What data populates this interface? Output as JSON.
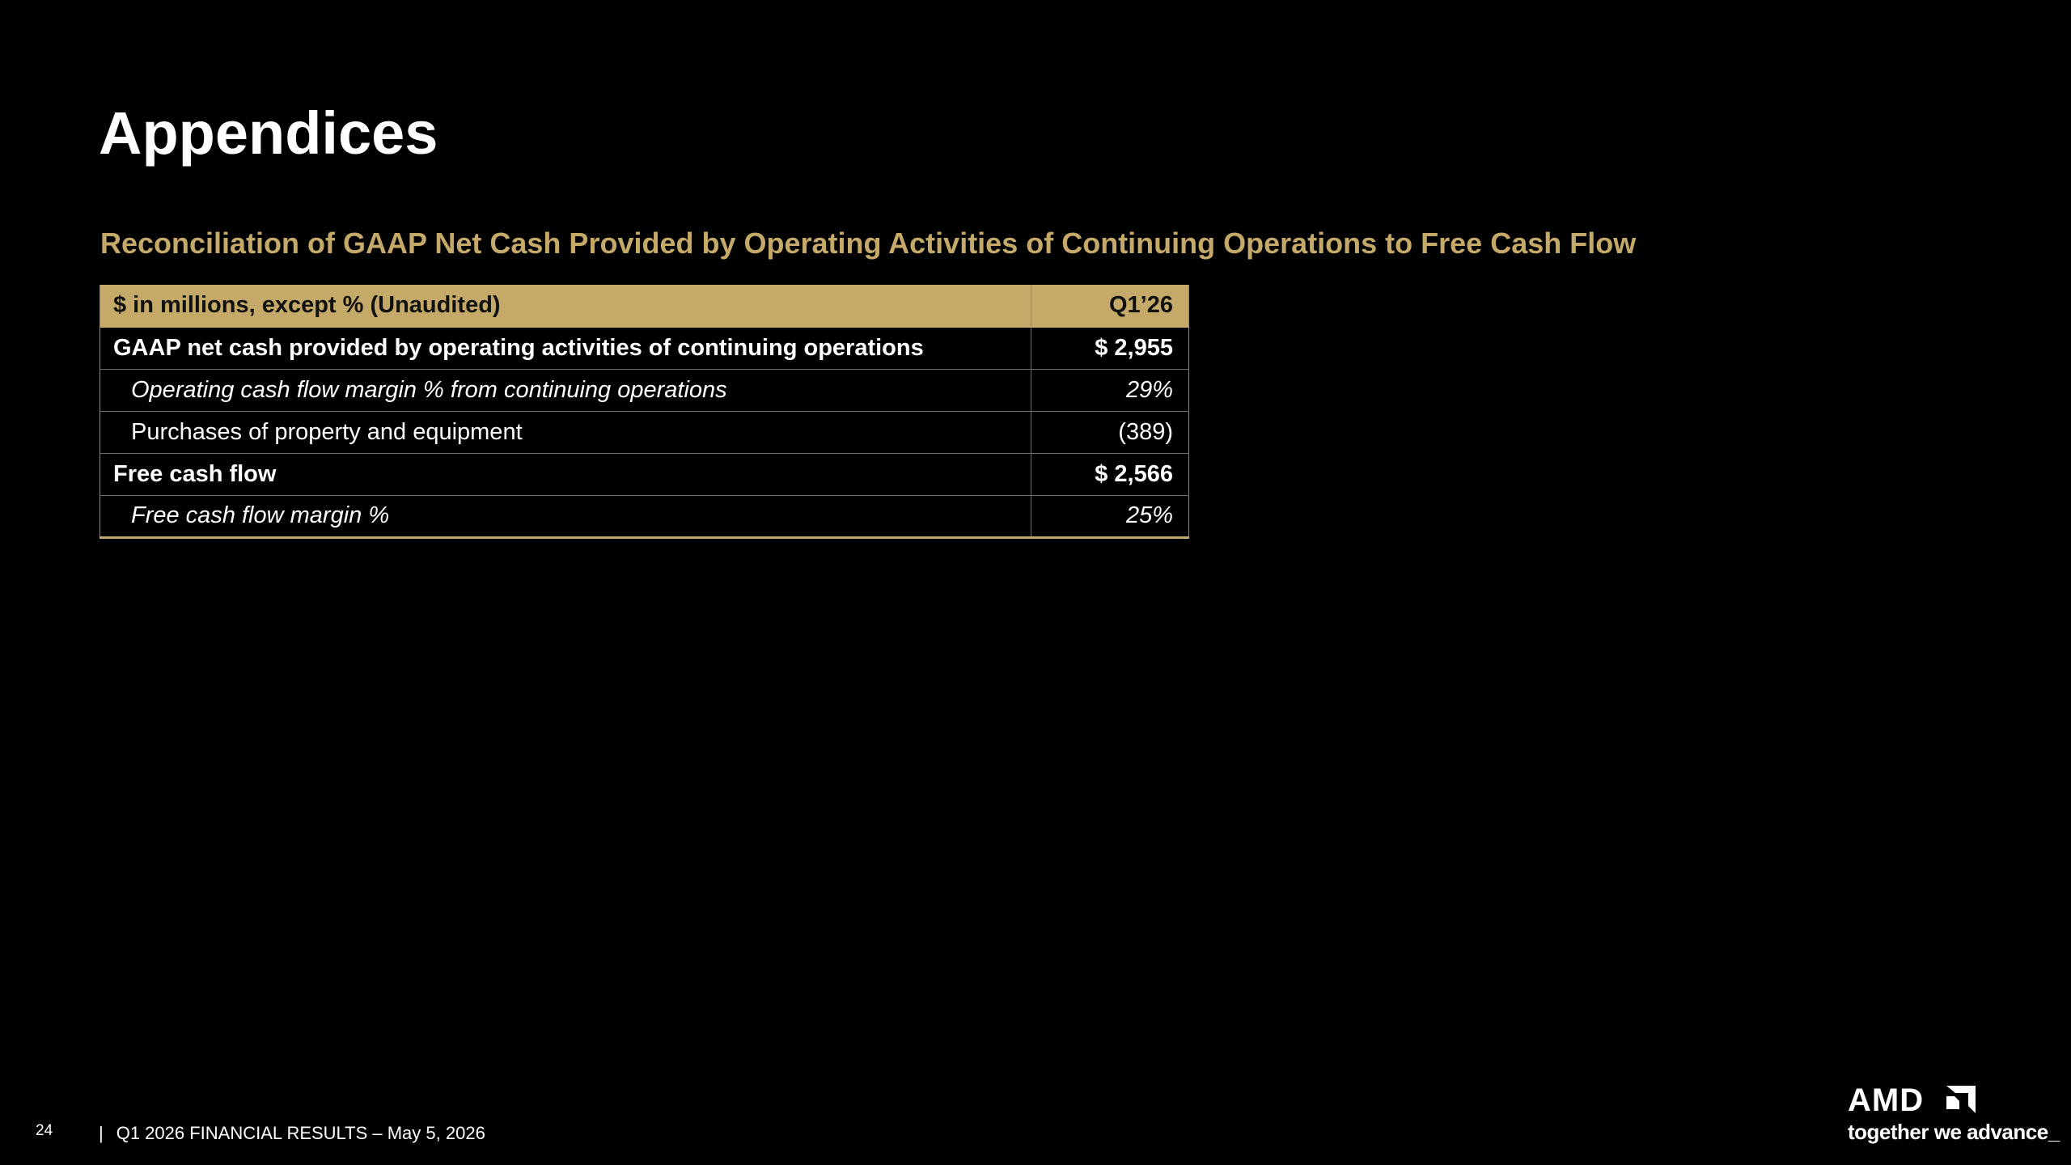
{
  "slide": {
    "title": "Appendices",
    "subtitle": "Reconciliation of GAAP Net Cash Provided by Operating Activities of Continuing Operations to Free Cash Flow"
  },
  "table": {
    "header": {
      "label": "$ in millions, except % (Unaudited)",
      "value": "Q1’26"
    },
    "rows": [
      {
        "label": "GAAP net cash provided by operating activities of continuing operations",
        "value": "$ 2,955"
      },
      {
        "label": "Operating cash flow margin % from continuing operations",
        "value": "29%"
      },
      {
        "label": "Purchases of property and equipment",
        "value": "(389)"
      },
      {
        "label": "Free cash flow",
        "value": "$ 2,566"
      },
      {
        "label": "Free cash flow margin %",
        "value": "25%"
      }
    ]
  },
  "footer": {
    "page_number": "24",
    "separator": "|",
    "text": "Q1 2026 FINANCIAL RESULTS – May 5, 2026"
  },
  "logo": {
    "brand": "AMD",
    "tagline": "together we advance_"
  },
  "colors": {
    "background": "#000000",
    "accent_gold": "#c4a968",
    "text": "#ffffff"
  }
}
